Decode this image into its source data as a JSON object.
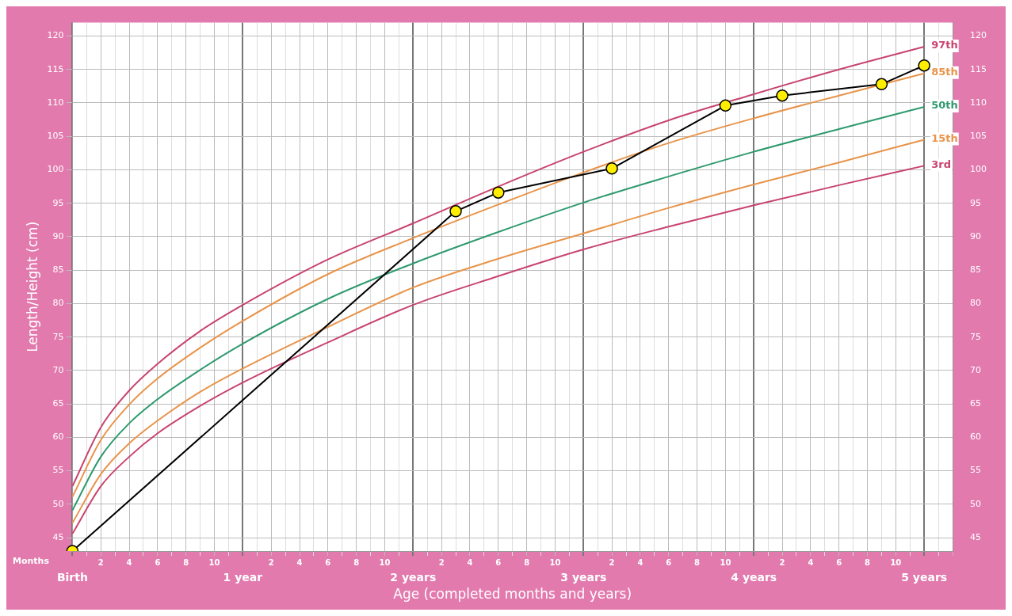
{
  "chart_data": {
    "type": "line",
    "xlabel": "Age (completed months and years)",
    "ylabel": "Length/Height (cm)",
    "annotations": [
      "Months"
    ],
    "categories": [
      "Birth",
      null,
      "2",
      null,
      "4",
      null,
      "6",
      null,
      "8",
      null,
      "10",
      null,
      "1 year",
      null,
      "2",
      null,
      "4",
      null,
      "6",
      null,
      "8",
      null,
      "10",
      null,
      "2 years",
      null,
      "2",
      null,
      "4",
      null,
      "6",
      null,
      "8",
      null,
      "10",
      null,
      "3 years",
      null,
      "2",
      null,
      "4",
      null,
      "6",
      null,
      "8",
      null,
      "10",
      null,
      "4 years",
      null,
      "2",
      null,
      "4",
      null,
      "6",
      null,
      "8",
      null,
      "10",
      null,
      "5 years",
      null,
      null
    ],
    "ylim": [
      43,
      122
    ],
    "y2lim": [
      43,
      122
    ],
    "yticks": [
      45,
      50,
      55,
      60,
      65,
      70,
      75,
      80,
      85,
      90,
      95,
      100,
      105,
      110,
      115,
      120
    ],
    "y2ticks": [
      45,
      50,
      55,
      60,
      65,
      70,
      75,
      80,
      85,
      90,
      95,
      100,
      105,
      110,
      115,
      120
    ],
    "grid": true,
    "series": [
      {
        "name": "97th",
        "color": "#c8446e",
        "marker": "none",
        "values": [
          52.7,
          null,
          61.5,
          null,
          67.0,
          null,
          71.0,
          null,
          null,
          75.9,
          null,
          null,
          79.8,
          null,
          null,
          null,
          null,
          null,
          86.6,
          null,
          null,
          null,
          null,
          null,
          92.0,
          null,
          null,
          null,
          null,
          null,
          97.5,
          null,
          null,
          null,
          null,
          null,
          102.7,
          null,
          null,
          null,
          null,
          null,
          107.4,
          null,
          null,
          null,
          null,
          null,
          111.3,
          null,
          null,
          null,
          null,
          null,
          115.0,
          null,
          null,
          null,
          null,
          null,
          118.4,
          null,
          null
        ]
      },
      {
        "name": "85th",
        "color": "#e8944a",
        "marker": "none",
        "values": [
          51.1,
          null,
          59.6,
          null,
          64.9,
          null,
          68.8,
          null,
          null,
          73.4,
          null,
          null,
          77.4,
          null,
          null,
          null,
          null,
          null,
          84.4,
          null,
          null,
          null,
          null,
          null,
          89.8,
          null,
          null,
          null,
          null,
          null,
          94.8,
          null,
          null,
          null,
          null,
          null,
          99.6,
          null,
          null,
          null,
          null,
          null,
          104.0,
          null,
          null,
          null,
          null,
          null,
          107.7,
          null,
          null,
          null,
          null,
          null,
          111.1,
          null,
          null,
          null,
          null,
          null,
          114.4,
          null,
          null
        ]
      },
      {
        "name": "50th",
        "color": "#2e9a6e",
        "marker": "none",
        "values": [
          49.1,
          null,
          57.1,
          null,
          62.1,
          null,
          65.7,
          null,
          null,
          70.1,
          null,
          null,
          74.0,
          null,
          null,
          null,
          null,
          null,
          80.7,
          null,
          null,
          null,
          null,
          null,
          86.0,
          null,
          null,
          null,
          null,
          null,
          90.7,
          null,
          null,
          null,
          null,
          null,
          95.1,
          null,
          null,
          null,
          null,
          null,
          99.0,
          null,
          null,
          null,
          null,
          null,
          102.7,
          null,
          null,
          null,
          null,
          null,
          106.1,
          null,
          null,
          null,
          null,
          null,
          109.4,
          null,
          null
        ]
      },
      {
        "name": "15th",
        "color": "#e8944a",
        "marker": "none",
        "values": [
          47.2,
          null,
          54.5,
          null,
          59.1,
          null,
          62.5,
          null,
          null,
          66.8,
          null,
          null,
          70.3,
          null,
          null,
          null,
          null,
          null,
          76.5,
          null,
          null,
          null,
          null,
          null,
          82.4,
          null,
          null,
          null,
          null,
          null,
          86.7,
          null,
          null,
          null,
          null,
          null,
          90.5,
          null,
          null,
          null,
          null,
          null,
          94.3,
          null,
          null,
          null,
          null,
          null,
          97.8,
          null,
          null,
          null,
          null,
          null,
          101.1,
          null,
          null,
          null,
          null,
          null,
          104.5,
          null,
          null
        ]
      },
      {
        "name": "3rd",
        "color": "#c8446e",
        "marker": "none",
        "values": [
          45.6,
          null,
          52.7,
          null,
          57.1,
          null,
          60.6,
          null,
          null,
          64.7,
          null,
          null,
          68.2,
          null,
          null,
          null,
          null,
          null,
          74.2,
          null,
          null,
          null,
          null,
          null,
          79.8,
          null,
          null,
          null,
          null,
          null,
          84.1,
          null,
          null,
          null,
          null,
          null,
          88.1,
          null,
          null,
          null,
          null,
          null,
          91.5,
          null,
          null,
          null,
          null,
          null,
          94.7,
          null,
          null,
          null,
          null,
          null,
          97.7,
          null,
          null,
          null,
          null,
          null,
          100.6,
          null,
          null
        ]
      },
      {
        "color": "#000000",
        "marker": "circle",
        "colors": [
          "#ffee00",
          null,
          null,
          null,
          null,
          null,
          null,
          null,
          null,
          null,
          null,
          null,
          null,
          null,
          null,
          null,
          null,
          null,
          null,
          null,
          null,
          null,
          null,
          null,
          null,
          null,
          null,
          "#ffee00",
          null,
          null,
          "#ffee00",
          null,
          null,
          null,
          null,
          null,
          null,
          null,
          "#ffee00",
          null,
          null,
          null,
          null,
          null,
          null,
          null,
          "#ffee00",
          null,
          null,
          null,
          "#ffee00",
          null,
          null,
          null,
          null,
          null,
          null,
          "#ffee00",
          null,
          null,
          "#ffee00",
          null,
          null
        ],
        "values": [
          43,
          null,
          null,
          null,
          null,
          null,
          null,
          null,
          null,
          null,
          null,
          null,
          null,
          null,
          null,
          null,
          null,
          null,
          null,
          null,
          null,
          null,
          null,
          null,
          null,
          null,
          null,
          93.8,
          null,
          null,
          96.6,
          null,
          null,
          null,
          null,
          null,
          null,
          null,
          100.2,
          null,
          null,
          null,
          null,
          null,
          null,
          null,
          109.6,
          null,
          null,
          null,
          111.1,
          null,
          null,
          null,
          null,
          null,
          null,
          112.8,
          null,
          null,
          115.6,
          null,
          null
        ]
      }
    ]
  }
}
